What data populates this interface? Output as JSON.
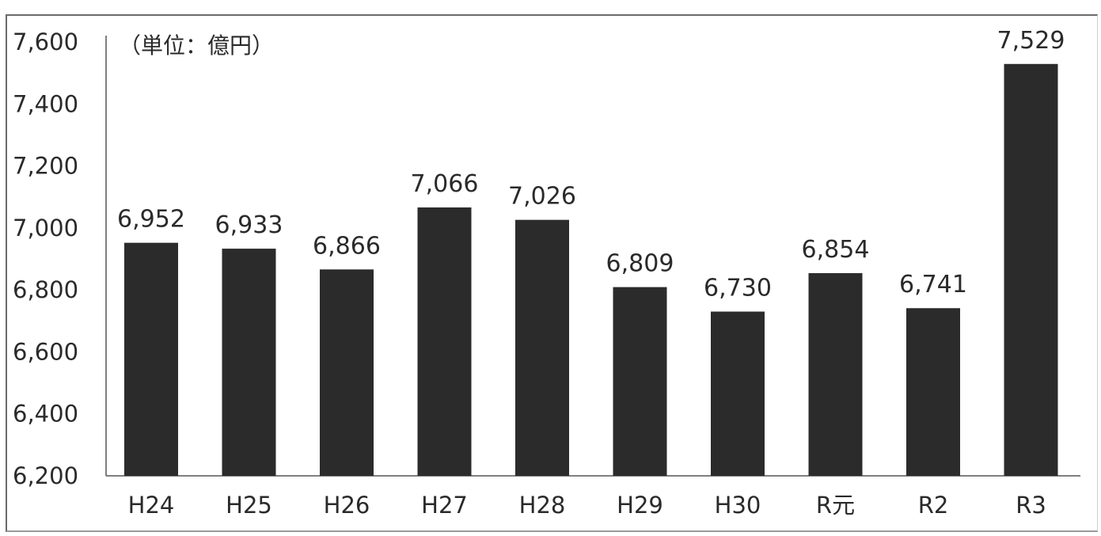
{
  "chart_data": {
    "type": "bar",
    "unit_label": "（単位：億円）",
    "categories": [
      "H24",
      "H25",
      "H26",
      "H27",
      "H28",
      "H29",
      "H30",
      "R元",
      "R2",
      "R3"
    ],
    "values": [
      6952,
      6933,
      6866,
      7066,
      7026,
      6809,
      6730,
      6854,
      6741,
      7529
    ],
    "data_labels": [
      "6,952",
      "6,933",
      "6,866",
      "7,066",
      "7,026",
      "6,809",
      "6,730",
      "6,854",
      "6,741",
      "7,529"
    ],
    "ylim": [
      6200,
      7600
    ],
    "yticks": [
      6200,
      6400,
      6600,
      6800,
      7000,
      7200,
      7400,
      7600
    ],
    "ytick_labels": [
      "6,200",
      "6,400",
      "6,600",
      "6,800",
      "7,000",
      "7,200",
      "7,400",
      "7,600"
    ],
    "grid": false,
    "legend": "none",
    "bar_color": "#2b2b2b"
  }
}
